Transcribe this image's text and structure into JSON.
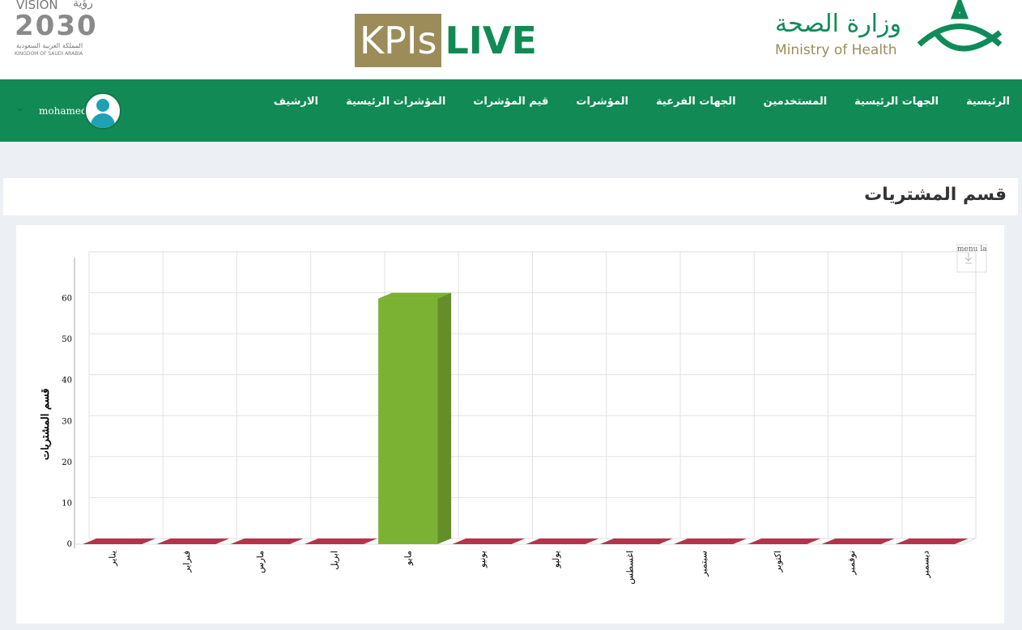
{
  "header": {
    "vision_text": "VISION",
    "vision_year": "2030",
    "vision_arabic": "رؤية",
    "kingdom_ar": "المملكة العربية السعودية",
    "kingdom_en": "KINGDOM OF SAUDI ARABIA",
    "kpis": "KPIs",
    "live": "LIVE",
    "ministry_ar": "وزارة الصحة",
    "ministry_en": "Ministry of Health"
  },
  "nav": {
    "items": [
      "الرئيسية",
      "الجهات الرئيسية",
      "المستخدمين",
      "الجهات الفرعية",
      "المؤشرات",
      "قيم المؤشرات",
      "المؤشرات الرئيسية",
      "الارشيف"
    ],
    "user": "mohamed"
  },
  "panel_title": "قسم المشتريات",
  "chart_data": {
    "type": "bar",
    "y_label": "قسم المشتريات",
    "menu_label": "menu la",
    "categories": [
      "يناير",
      "فبراير",
      "مارس",
      "ابريل",
      "مايو",
      "يونيو",
      "يوليو",
      "اغسطس",
      "سبتمبر",
      "اكتوبر",
      "نوفمبر",
      "ديسمبر"
    ],
    "values": [
      0,
      0,
      0,
      0,
      60,
      0,
      0,
      0,
      0,
      0,
      0,
      0
    ],
    "colors": [
      "#b5334a",
      "#b5334a",
      "#b5334a",
      "#b5334a",
      "#7cb233",
      "#b5334a",
      "#b5334a",
      "#b5334a",
      "#b5334a",
      "#b5334a",
      "#b5334a",
      "#b5334a"
    ],
    "ylim": [
      0,
      70
    ],
    "yticks": [
      0,
      10,
      20,
      30,
      40,
      50,
      60
    ],
    "grid": true
  }
}
